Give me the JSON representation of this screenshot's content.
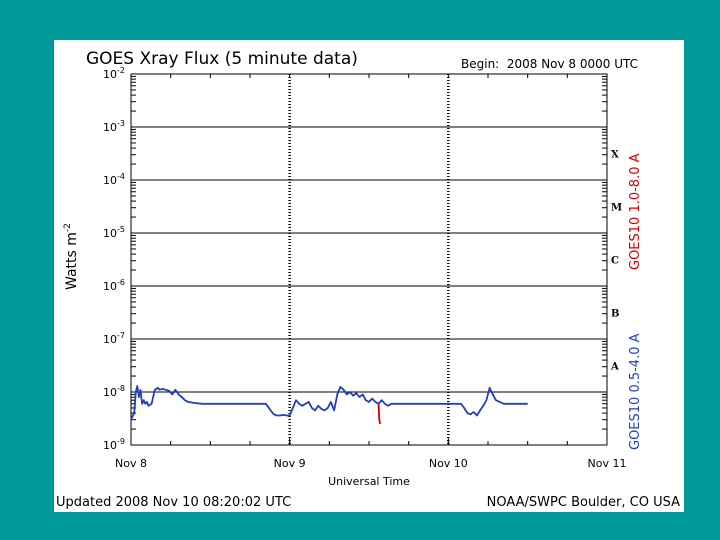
{
  "colors": {
    "slide_background": "#009999",
    "panel_background": "#ffffff",
    "long_channel": "#1f3fbf",
    "short_channel": "#cc0000",
    "long_legend_text": "#cc0000",
    "short_legend_text": "#1f3fbf"
  },
  "chart_data": {
    "type": "line",
    "title": "GOES Xray Flux (5 minute data)",
    "begin_label": "Begin:  2008 Nov 8 0000 UTC",
    "ylabel": "Watts m",
    "ylabel_sup": "-2",
    "xlabel": "Universal Time",
    "y_scale": "log",
    "ylim": [
      1e-09,
      0.01
    ],
    "y_ticks": [
      {
        "base": "10",
        "exp": "-2",
        "value": 0.01
      },
      {
        "base": "10",
        "exp": "-3",
        "value": 0.001
      },
      {
        "base": "10",
        "exp": "-4",
        "value": 0.0001
      },
      {
        "base": "10",
        "exp": "-5",
        "value": 1e-05
      },
      {
        "base": "10",
        "exp": "-6",
        "value": 1e-06
      },
      {
        "base": "10",
        "exp": "-7",
        "value": 1e-07
      },
      {
        "base": "10",
        "exp": "-8",
        "value": 1e-08
      },
      {
        "base": "10",
        "exp": "-9",
        "value": 1e-09
      }
    ],
    "x_unit": "days from 2008 Nov 8 0000 UTC",
    "xlim": [
      0,
      3
    ],
    "x_ticks": [
      {
        "label": "Nov 8",
        "day": 0
      },
      {
        "label": "Nov 9",
        "day": 1
      },
      {
        "label": "Nov 10",
        "day": 2
      },
      {
        "label": "Nov 11",
        "day": 3
      }
    ],
    "flare_classes": [
      {
        "label": "X",
        "value": 0.0001
      },
      {
        "label": "M",
        "value": 1e-05
      },
      {
        "label": "C",
        "value": 1e-06
      },
      {
        "label": "B",
        "value": 1e-07
      },
      {
        "label": "A",
        "value": 1e-08
      }
    ],
    "grid": "horizontal at each decade, vertical dashed at day boundaries",
    "legend": [
      {
        "label": "GOES10 1.0-8.0 A",
        "color": "#cc0000",
        "position": "right-upper"
      },
      {
        "label": "GOES10 0.5-4.0 A",
        "color": "#1f3fbf",
        "position": "right-lower"
      }
    ],
    "series": [
      {
        "name": "GOES10 1.0-8.0 A",
        "color": "#1f3fbf",
        "x": [
          0.0,
          0.01,
          0.02,
          0.03,
          0.04,
          0.05,
          0.06,
          0.07,
          0.08,
          0.09,
          0.1,
          0.11,
          0.13,
          0.15,
          0.17,
          0.18,
          0.2,
          0.22,
          0.24,
          0.26,
          0.28,
          0.3,
          0.32,
          0.34,
          0.36,
          0.4,
          0.45,
          0.5,
          0.55,
          0.6,
          0.65,
          0.7,
          0.75,
          0.8,
          0.85,
          0.88,
          0.9,
          0.92,
          0.94,
          0.96,
          0.98,
          1.0,
          1.02,
          1.04,
          1.06,
          1.08,
          1.1,
          1.12,
          1.14,
          1.16,
          1.18,
          1.2,
          1.22,
          1.24,
          1.26,
          1.28,
          1.3,
          1.32,
          1.34,
          1.36,
          1.38,
          1.4,
          1.42,
          1.44,
          1.46,
          1.48,
          1.5,
          1.52,
          1.54,
          1.56,
          1.58,
          1.6,
          1.62,
          1.64,
          1.66,
          1.68,
          1.7,
          1.75,
          1.8,
          1.85,
          1.9,
          1.95,
          2.0,
          2.02,
          2.04,
          2.06,
          2.08,
          2.1,
          2.12,
          2.14,
          2.16,
          2.18,
          2.2,
          2.22,
          2.24,
          2.26,
          2.28,
          2.3,
          2.35,
          2.4,
          2.45,
          2.5
        ],
        "y": [
          3e-09,
          3.5e-09,
          4e-09,
          1e-08,
          1.3e-08,
          8e-09,
          1.1e-08,
          6e-09,
          7e-09,
          6e-09,
          6.5e-09,
          5.5e-09,
          6e-09,
          1.1e-08,
          1.2e-08,
          1.1e-08,
          1.15e-08,
          1.1e-08,
          1.05e-08,
          9e-09,
          1.1e-08,
          9e-09,
          8e-09,
          7e-09,
          6.5e-09,
          6.2e-09,
          6e-09,
          6e-09,
          6e-09,
          6e-09,
          6e-09,
          6e-09,
          6e-09,
          6e-09,
          6e-09,
          4.5e-09,
          3.8e-09,
          3.6e-09,
          3.6e-09,
          3.7e-09,
          3.6e-09,
          3.6e-09,
          5e-09,
          7e-09,
          6e-09,
          5.5e-09,
          6e-09,
          6.5e-09,
          5e-09,
          4.5e-09,
          5.5e-09,
          4.8e-09,
          4.5e-09,
          5e-09,
          6.5e-09,
          4.5e-09,
          9e-09,
          1.25e-08,
          1.1e-08,
          9e-09,
          1e-08,
          8.5e-09,
          9.5e-09,
          8e-09,
          9e-09,
          7e-09,
          6.5e-09,
          7.5e-09,
          6.5e-09,
          6e-09,
          7e-09,
          6e-09,
          5.5e-09,
          6e-09,
          6e-09,
          6e-09,
          6e-09,
          6e-09,
          6e-09,
          6e-09,
          6e-09,
          6e-09,
          6e-09,
          6e-09,
          6e-09,
          6e-09,
          6e-09,
          5e-09,
          4e-09,
          3.8e-09,
          4.2e-09,
          3.6e-09,
          4.5e-09,
          5.5e-09,
          7e-09,
          1.2e-08,
          9e-09,
          7e-09,
          6e-09,
          6e-09,
          6e-09,
          6e-09
        ]
      },
      {
        "name": "GOES10 0.5-4.0 A",
        "color": "#cc0000",
        "x": [
          1.56,
          1.565,
          1.57
        ],
        "y": [
          6e-09,
          3e-09,
          2.5e-09
        ]
      }
    ]
  },
  "footer": {
    "updated": "Updated 2008 Nov 10 08:20:02 UTC",
    "source": "NOAA/SWPC Boulder, CO USA"
  }
}
